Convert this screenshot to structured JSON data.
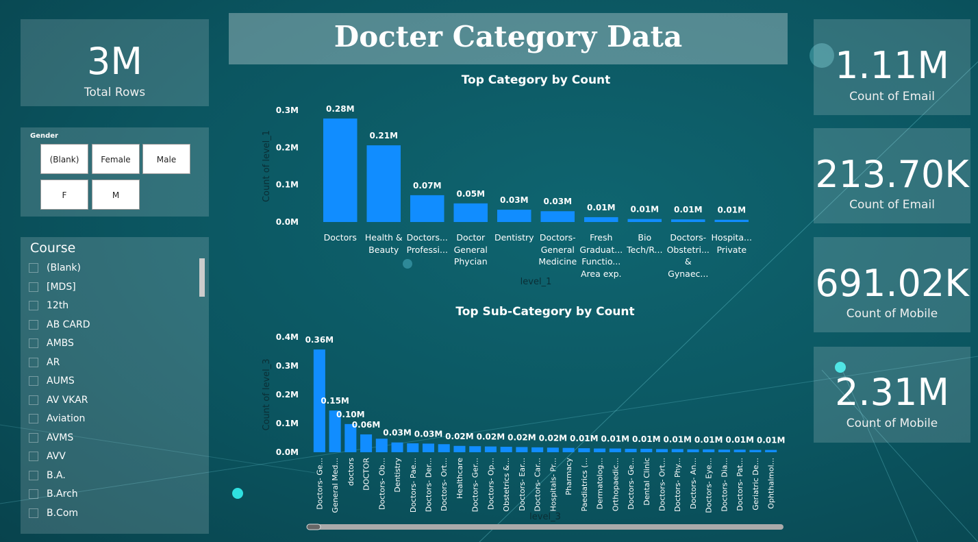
{
  "header": {
    "title": "Docter Category Data"
  },
  "cards": [
    {
      "value": "3M",
      "label": "Total Rows"
    },
    {
      "value": "1.11M",
      "label": "Count of Email"
    },
    {
      "value": "213.70K",
      "label": "Count of Email"
    },
    {
      "value": "691.02K",
      "label": "Count of Mobile"
    },
    {
      "value": "2.31M",
      "label": "Count of Mobile"
    }
  ],
  "gender_slicer": {
    "title": "Gender",
    "options": [
      "(Blank)",
      "Female",
      "Male",
      "F",
      "M"
    ]
  },
  "course_slicer": {
    "title": "Course",
    "options": [
      "(Blank)",
      "[MDS]",
      "12th",
      "AB CARD",
      "AMBS",
      "AR",
      "AUMS",
      "AV VKAR",
      "Aviation",
      "AVMS",
      "AVV",
      "B.A.",
      "B.Arch",
      "B.Com"
    ]
  },
  "chart_data": [
    {
      "type": "bar",
      "title": "Top Category by Count",
      "x_label": "level_1",
      "y_label": "Count of level_1",
      "color": "#118dff",
      "categories": [
        "Doctors",
        "Health & Beauty",
        "Doctors... Professi...",
        "Doctor General Phycian",
        "Dentistry",
        "Doctors- General Medicine",
        "Fresh Graduat... Functio... Area exp.",
        "Bio Tech/R...",
        "Doctors- Obstetri... & Gynaec...",
        "Hospita... Private"
      ],
      "values": [
        278000,
        206000,
        72000,
        50000,
        33000,
        29000,
        13000,
        8000,
        7000,
        6000
      ],
      "value_labels": [
        "0.28M",
        "0.21M",
        "0.07M",
        "0.05M",
        "0.03M",
        "0.03M",
        "0.01M",
        "0.01M",
        "0.01M",
        "0.01M"
      ],
      "ylim": [
        0,
        300000
      ],
      "yticks": [
        {
          "value": 0,
          "label": "0.0M"
        },
        {
          "value": 100000,
          "label": "0.1M"
        },
        {
          "value": 200000,
          "label": "0.2M"
        },
        {
          "value": 300000,
          "label": "0.3M"
        }
      ],
      "grid": false
    },
    {
      "type": "bar",
      "title": "Top Sub-Category by Count",
      "x_label": "level_3",
      "y_label": "Count of level_3",
      "color": "#118dff",
      "categories": [
        "Doctors- Ge...",
        "General Med...",
        "doctors",
        "DOCTOR",
        "Doctors- Ob...",
        "Dentistry",
        "Doctors- Pae...",
        "Doctors- Der...",
        "Doctors- Ort...",
        "Healthcare",
        "Doctors- Ger...",
        "Doctors- Op...",
        "Obstetrics &...",
        "Doctors- Ear...",
        "Doctors- Car...",
        "Hospitals- Pr...",
        "Pharmacy",
        "Paediatrics (...",
        "Dermatolog...",
        "Orthopaedic...",
        "Doctors- Ge...",
        "Dental Clinic",
        "Doctors- Ort...",
        "Doctors- Phy...",
        "Doctors- An...",
        "Doctors- Eye...",
        "Doctors- Dia...",
        "Doctors- Pat...",
        "Geriatric De...",
        "Ophthalmol..."
      ],
      "values": [
        357000,
        145000,
        98000,
        62000,
        47000,
        34000,
        31000,
        30000,
        28000,
        22000,
        21000,
        20000,
        19000,
        18000,
        17000,
        16000,
        15000,
        14000,
        13000,
        13000,
        12000,
        12000,
        11000,
        11000,
        10000,
        10000,
        9000,
        9000,
        8000,
        8000
      ],
      "value_labels": [
        "0.36M",
        "0.15M",
        "0.10M",
        "0.06M",
        null,
        "0.03M",
        null,
        "0.03M",
        null,
        "0.02M",
        null,
        "0.02M",
        null,
        "0.02M",
        null,
        "0.02M",
        null,
        "0.01M",
        null,
        "0.01M",
        null,
        "0.01M",
        null,
        "0.01M",
        null,
        "0.01M",
        null,
        "0.01M",
        null,
        "0.01M"
      ],
      "ylim": [
        0,
        400000
      ],
      "yticks": [
        {
          "value": 0,
          "label": "0.0M"
        },
        {
          "value": 100000,
          "label": "0.1M"
        },
        {
          "value": 200000,
          "label": "0.2M"
        },
        {
          "value": 300000,
          "label": "0.3M"
        },
        {
          "value": 400000,
          "label": "0.4M"
        }
      ],
      "grid": false
    }
  ]
}
